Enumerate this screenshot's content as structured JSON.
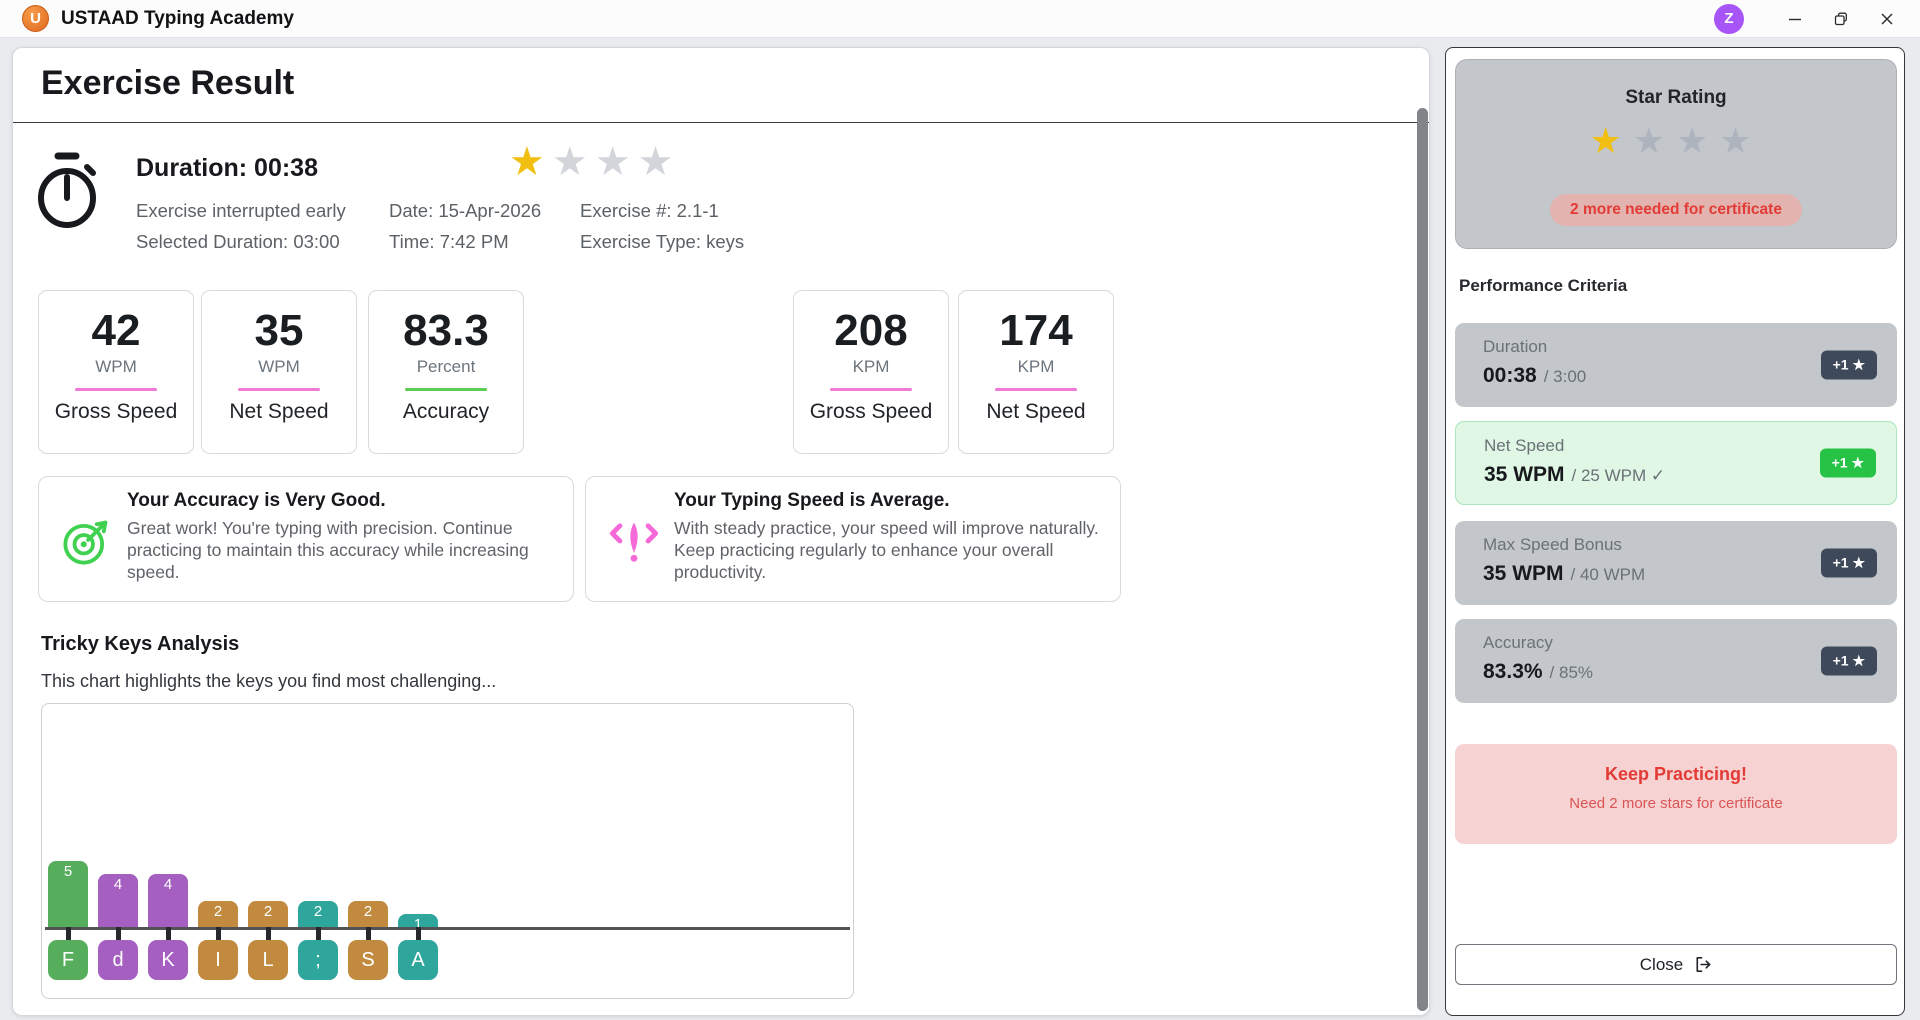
{
  "colors": {
    "accent_pink": "#f07ad5",
    "accent_green": "#5ccd52",
    "star_gold": "#f0bf12",
    "star_gray_light": "#d2d5da",
    "star_gray": "#aeb4bd",
    "badge_dark": "#3e4a5a",
    "badge_green": "#27c346",
    "success_bg": "#dff7e4",
    "success_border": "#abe7bb",
    "panel_gray": "#c3c7cc",
    "pill_bg": "#e2b3af",
    "red": "#e33b35",
    "practice_bg": "#f7d2d2",
    "icon_green": "#3fd14f",
    "icon_pink": "#f56ad8",
    "avatar_purple": "#a855f7"
  },
  "title_bar": {
    "app_title": "USTAAD Typing Academy",
    "logo_letter": "U",
    "avatar_letter": "Z"
  },
  "main": {
    "page_title": "Exercise Result",
    "summary": {
      "duration_heading": "Duration: 00:38",
      "stars": {
        "earned": 1,
        "total": 4
      },
      "line1": [
        "Exercise interrupted early",
        "Date: 15-Apr-2026",
        "Exercise #: 2.1-1"
      ],
      "line2": [
        "Selected Duration: 03:00",
        "Time: 7:42 PM",
        "Exercise Type: keys"
      ]
    },
    "stat_cards": [
      {
        "value": "42",
        "unit": "WPM",
        "label": "Gross Speed",
        "accent": "#f07ad5"
      },
      {
        "value": "35",
        "unit": "WPM",
        "label": "Net Speed",
        "accent": "#f07ad5"
      },
      {
        "value": "83.3",
        "unit": "Percent",
        "label": "Accuracy",
        "accent": "#5ccd52"
      },
      {
        "value": "208",
        "unit": "KPM",
        "label": "Gross Speed",
        "accent": "#f07ad5"
      },
      {
        "value": "174",
        "unit": "KPM",
        "label": "Net Speed",
        "accent": "#f07ad5"
      }
    ],
    "feedback": [
      {
        "icon": "target-icon",
        "title": "Your Accuracy is Very Good.",
        "body": "Great work! You're typing with precision. Continue practicing to maintain this accuracy while increasing speed."
      },
      {
        "icon": "speedometer-icon",
        "title": "Your Typing Speed is Average.",
        "body": "With steady practice, your speed will improve naturally. Keep practicing regularly to enhance your overall productivity."
      }
    ],
    "tricky_keys": {
      "heading": "Tricky Keys Analysis",
      "subtitle": "This chart highlights the keys you find most challenging..."
    }
  },
  "chart_data": {
    "type": "bar",
    "title": "Tricky Keys Analysis",
    "categories": [
      "F",
      "d",
      "K",
      "I",
      "L",
      ";",
      "S",
      "A"
    ],
    "values": [
      5,
      4,
      4,
      2,
      2,
      2,
      2,
      1
    ],
    "bar_colors": [
      "#56ae5c",
      "#a55fc0",
      "#a55fc0",
      "#c28a3e",
      "#c28a3e",
      "#2fa69c",
      "#c28a3e",
      "#2fa69c"
    ],
    "xlabel": "",
    "ylabel": "",
    "ylim": [
      0,
      5
    ],
    "grid": false,
    "value_labels": true,
    "legend": false
  },
  "sidebar": {
    "star_rating": {
      "title": "Star Rating",
      "stars": {
        "earned": 1,
        "total": 4
      },
      "badge": "2 more needed for certificate"
    },
    "criteria_heading": "Performance Criteria",
    "criteria": [
      {
        "label": "Duration",
        "value": "00:38",
        "target": "/ 3:00",
        "badge": "+1 ★",
        "achieved": false
      },
      {
        "label": "Net Speed",
        "value": "35 WPM",
        "target": "/ 25 WPM ✓",
        "badge": "+1 ★",
        "achieved": true
      },
      {
        "label": "Max Speed Bonus",
        "value": "35 WPM",
        "target": "/ 40 WPM",
        "badge": "+1 ★",
        "achieved": false
      },
      {
        "label": "Accuracy",
        "value": "83.3%",
        "target": "/ 85%",
        "badge": "+1 ★",
        "achieved": false
      }
    ],
    "practice_box": {
      "title": "Keep Practicing!",
      "subtitle": "Need 2 more stars for certificate"
    },
    "close_label": "Close"
  }
}
